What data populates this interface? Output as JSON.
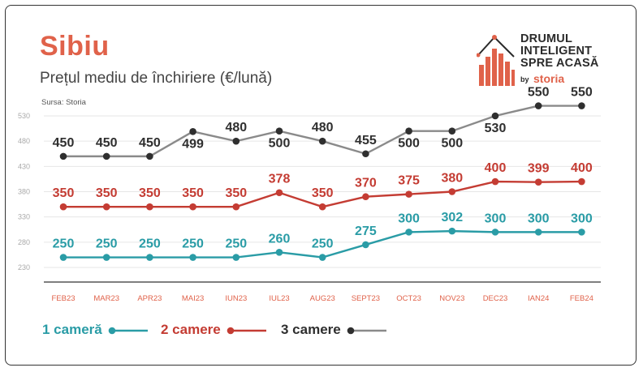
{
  "header": {
    "title": "Sibiu",
    "subtitle": "Prețul mediu de închiriere (€/lună)",
    "source": "Sursa: Storia"
  },
  "logo": {
    "line1": "DRUMUL",
    "line2": "INTELIGENT",
    "line3": "SPRE ACASĂ",
    "by": "by",
    "brand": "storia"
  },
  "colors": {
    "title": "#e0624a",
    "series_1": "#2a9ca6",
    "series_2": "#c43c33",
    "series_3": "#8a8a8a",
    "series_3_marker": "#2f2f2f",
    "tick_label": "#e0624a",
    "grid": "#e6e6e6"
  },
  "chart_data": {
    "type": "line",
    "categories": [
      "FEB23",
      "MAR23",
      "APR23",
      "MAI23",
      "IUN23",
      "IUL23",
      "AUG23",
      "SEPT23",
      "OCT23",
      "NOV23",
      "DEC23",
      "IAN24",
      "FEB24"
    ],
    "ylim": [
      230,
      530
    ],
    "yticks": [
      230,
      280,
      330,
      380,
      430,
      480,
      530
    ],
    "grid": true,
    "legend_position": "bottom-left",
    "series": [
      {
        "name": "1 cameră",
        "values": [
          250,
          250,
          250,
          250,
          250,
          260,
          250,
          275,
          300,
          302,
          300,
          300,
          300
        ]
      },
      {
        "name": "2 camere",
        "values": [
          350,
          350,
          350,
          350,
          350,
          378,
          350,
          370,
          375,
          380,
          400,
          399,
          400
        ]
      },
      {
        "name": "3 camere",
        "values": [
          450,
          450,
          450,
          499,
          480,
          500,
          480,
          455,
          500,
          500,
          530,
          550,
          550
        ]
      }
    ]
  }
}
